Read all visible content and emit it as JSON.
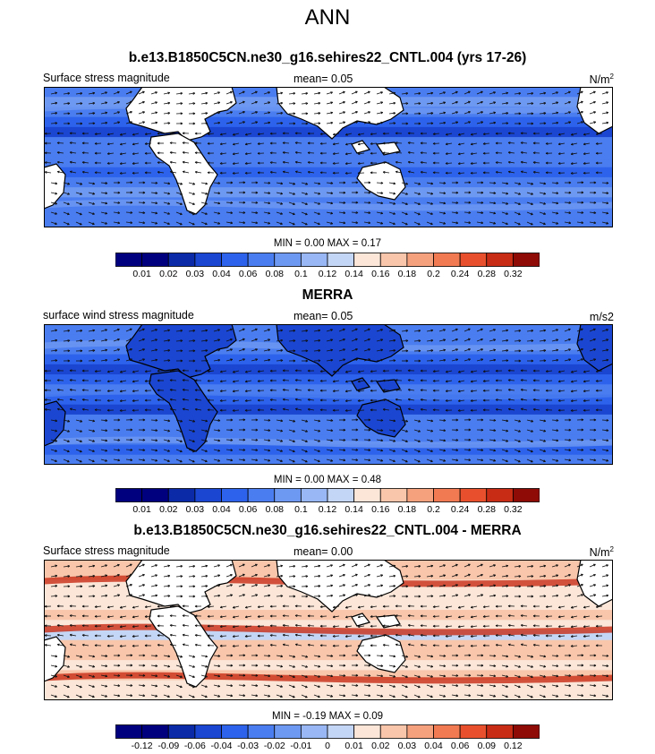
{
  "title": "ANN",
  "colors": {
    "outline": "#000000",
    "land": "#ffffff",
    "vector": "#111111"
  },
  "panels": [
    {
      "title": "b.e13.B1850C5CN.ne30_g16.sehires22_CNTL.004 (yrs 17-26)",
      "left_label": "Surface stress magnitude",
      "mean_label": "mean=   0.05",
      "units": "N/m",
      "units_sup": "2",
      "minmax": "MIN =   0.00 MAX =   0.17",
      "colorbar_labels": [
        "0.01",
        "0.02",
        "0.03",
        "0.04",
        "0.06",
        "0.08",
        "0.1",
        "0.12",
        "0.14",
        "0.16",
        "0.18",
        "0.2",
        "0.24",
        "0.28",
        "0.32"
      ],
      "colorbar_colors": [
        "#00007f",
        "#0a2aa8",
        "#1a46d2",
        "#2d63ec",
        "#4a7df0",
        "#6e99f2",
        "#98b7f4",
        "#c4d6f6",
        "#fbe6d8",
        "#f9c6ab",
        "#f6a17d",
        "#f27a52",
        "#e8502d",
        "#c82c15",
        "#8e0b06"
      ]
    },
    {
      "title": "MERRA",
      "left_label": "surface wind stress magnitude",
      "mean_label": "mean=   0.05",
      "units": "m/s2",
      "units_sup": "",
      "minmax": "MIN =   0.00 MAX =   0.48",
      "colorbar_labels": [
        "0.01",
        "0.02",
        "0.03",
        "0.04",
        "0.06",
        "0.08",
        "0.1",
        "0.12",
        "0.14",
        "0.16",
        "0.18",
        "0.2",
        "0.24",
        "0.28",
        "0.32"
      ],
      "colorbar_colors": [
        "#00007f",
        "#0a2aa8",
        "#1a46d2",
        "#2d63ec",
        "#4a7df0",
        "#6e99f2",
        "#98b7f4",
        "#c4d6f6",
        "#fbe6d8",
        "#f9c6ab",
        "#f6a17d",
        "#f27a52",
        "#e8502d",
        "#c82c15",
        "#8e0b06"
      ]
    },
    {
      "title": "b.e13.B1850C5CN.ne30_g16.sehires22_CNTL.004 - MERRA",
      "left_label": "Surface stress magnitude",
      "mean_label": "mean=   0.00",
      "units": "N/m",
      "units_sup": "2",
      "minmax": "MIN =  -0.19 MAX =   0.09",
      "colorbar_labels": [
        "-0.12",
        "-0.09",
        "-0.06",
        "-0.04",
        "-0.03",
        "-0.02",
        "-0.01",
        "0",
        "0.01",
        "0.02",
        "0.03",
        "0.04",
        "0.06",
        "0.09",
        "0.12"
      ],
      "colorbar_colors": [
        "#00007f",
        "#0a2aa8",
        "#1a46d2",
        "#2d63ec",
        "#4a7df0",
        "#6e99f2",
        "#98b7f4",
        "#c4d6f6",
        "#fbe6d8",
        "#f9c6ab",
        "#f6a17d",
        "#f27a52",
        "#e8502d",
        "#c82c15",
        "#8e0b06"
      ]
    }
  ],
  "chart_data": [
    {
      "type": "heatmap",
      "title": "b.e13.B1850C5CN.ne30_g16.sehires22_CNTL.004 (yrs 17-26)",
      "variable": "Surface stress magnitude",
      "units": "N/m2",
      "mean": 0.05,
      "min": 0.0,
      "max": 0.17,
      "levels": [
        0.01,
        0.02,
        0.03,
        0.04,
        0.06,
        0.08,
        0.1,
        0.12,
        0.14,
        0.16,
        0.18,
        0.2,
        0.24,
        0.28,
        0.32
      ],
      "overlay": "wind stress vectors",
      "bands": [
        0.05,
        0.06,
        0.045,
        0.03,
        0.02,
        0.04,
        0.05,
        0.04,
        0.03,
        0.05,
        0.06,
        0.05,
        0.04,
        0.05
      ]
    },
    {
      "type": "heatmap",
      "title": "MERRA",
      "variable": "surface wind stress magnitude",
      "units": "m/s2",
      "mean": 0.05,
      "min": 0.0,
      "max": 0.48,
      "levels": [
        0.01,
        0.02,
        0.03,
        0.04,
        0.06,
        0.08,
        0.1,
        0.12,
        0.14,
        0.16,
        0.18,
        0.2,
        0.24,
        0.28,
        0.32
      ],
      "overlay": "wind stress vectors",
      "bands": [
        0.04,
        0.05,
        0.04,
        0.03,
        0.02,
        0.035,
        0.045,
        0.035,
        0.025,
        0.04,
        0.05,
        0.045,
        0.035,
        0.04
      ]
    },
    {
      "type": "heatmap",
      "title": "b.e13.B1850C5CN.ne30_g16.sehires22_CNTL.004 - MERRA",
      "variable": "Surface stress magnitude",
      "units": "N/m2",
      "mean": 0.0,
      "min": -0.19,
      "max": 0.09,
      "levels": [
        -0.12,
        -0.09,
        -0.06,
        -0.04,
        -0.03,
        -0.02,
        -0.01,
        0,
        0.01,
        0.02,
        0.03,
        0.04,
        0.06,
        0.09,
        0.12
      ],
      "overlay": "wind stress difference vectors",
      "bands": [
        0.01,
        0.015,
        0.005,
        0.0,
        0.005,
        0.01,
        0.005,
        -0.005,
        0.01,
        0.015,
        0.005,
        0.01,
        0.005,
        0.0
      ]
    }
  ]
}
